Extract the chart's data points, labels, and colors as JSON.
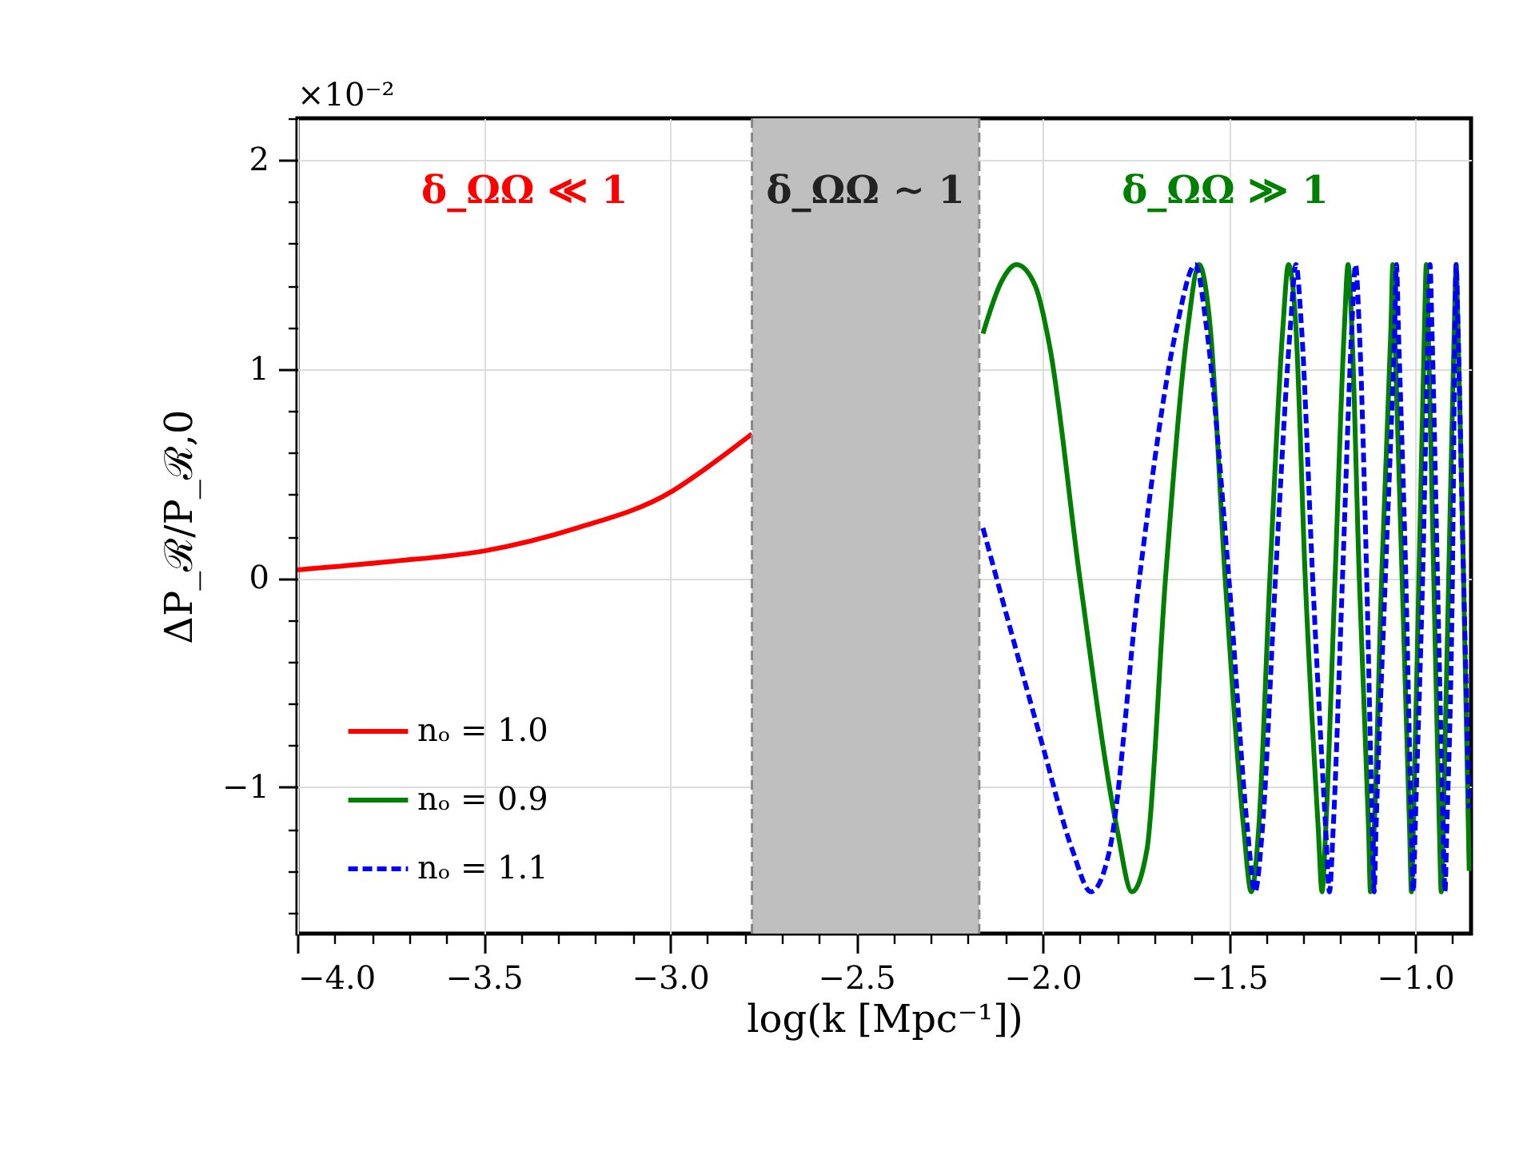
{
  "chart_data": {
    "type": "line",
    "xlabel": "log(k [Mpc⁻¹])",
    "ylabel": "ΔP_ℛ/P_ℛ,0",
    "xlim": [
      -4.0,
      -0.85
    ],
    "ylim": [
      -1.7,
      2.2
    ],
    "xticks": [
      {
        "value": -4.0,
        "label": "−4.0"
      },
      {
        "value": -3.9,
        "label": null
      },
      {
        "value": -3.8,
        "label": null
      },
      {
        "value": -3.7,
        "label": null
      },
      {
        "value": -3.6,
        "label": null
      },
      {
        "value": -3.5,
        "label": "−3.5"
      },
      {
        "value": -3.4,
        "label": null
      },
      {
        "value": -3.3,
        "label": null
      },
      {
        "value": -3.2,
        "label": null
      },
      {
        "value": -3.1,
        "label": null
      },
      {
        "value": -3.0,
        "label": "−3.0"
      },
      {
        "value": -2.9,
        "label": null
      },
      {
        "value": -2.8,
        "label": null
      },
      {
        "value": -2.7,
        "label": null
      },
      {
        "value": -2.6,
        "label": null
      },
      {
        "value": -2.5,
        "label": "−2.5"
      },
      {
        "value": -2.4,
        "label": null
      },
      {
        "value": -2.3,
        "label": null
      },
      {
        "value": -2.2,
        "label": null
      },
      {
        "value": -2.1,
        "label": null
      },
      {
        "value": -2.0,
        "label": "−2.0"
      },
      {
        "value": -1.9,
        "label": null
      },
      {
        "value": -1.8,
        "label": null
      },
      {
        "value": -1.7,
        "label": null
      },
      {
        "value": -1.6,
        "label": null
      },
      {
        "value": -1.5,
        "label": "−1.5"
      },
      {
        "value": -1.4,
        "label": null
      },
      {
        "value": -1.3,
        "label": null
      },
      {
        "value": -1.2,
        "label": null
      },
      {
        "value": -1.1,
        "label": null
      },
      {
        "value": -1.0,
        "label": "−1.0"
      },
      {
        "value": -0.9,
        "label": null
      }
    ],
    "yticks": [
      {
        "value": -1.6,
        "label": null
      },
      {
        "value": -1.4,
        "label": null
      },
      {
        "value": -1.2,
        "label": null
      },
      {
        "value": -1,
        "label": "−1"
      },
      {
        "value": -0.8,
        "label": null
      },
      {
        "value": -0.6,
        "label": null
      },
      {
        "value": -0.4,
        "label": null
      },
      {
        "value": -0.2,
        "label": null
      },
      0,
      {
        "value": 0.2,
        "label": null
      },
      {
        "value": 0.4,
        "label": null
      },
      {
        "value": 0.6,
        "label": null
      },
      {
        "value": 0.8,
        "label": null
      },
      1,
      {
        "value": 1.2,
        "label": null
      },
      {
        "value": 1.4,
        "label": null
      },
      {
        "value": 1.6,
        "label": null
      },
      {
        "value": 1.8,
        "label": null
      },
      2,
      {
        "value": 2.2,
        "label": null
      }
    ],
    "grid": true,
    "legend": "bottom left",
    "bands": [
      {
        "axis": "x",
        "from": -2.78,
        "to": -2.17,
        "label": "δ_ΩΩ ∼ 1",
        "color": "#bfbfbf"
      }
    ],
    "ref_lines": [
      {
        "axis": "x",
        "value": -2.78,
        "color": "#888888",
        "line_style": "dashed"
      },
      {
        "axis": "x",
        "value": -2.17,
        "color": "#888888",
        "line_style": "dashed"
      }
    ],
    "annotations": [
      "×10⁻²",
      "δ_ΩΩ ≪ 1",
      "δ_ΩΩ ≫ 1"
    ],
    "series": [
      {
        "name": "nₒ = 1.0",
        "color": "#ff0000",
        "line_style": "solid",
        "x": [
          -4.0,
          -3.75,
          -3.5,
          -3.25,
          -3.0,
          -2.9,
          -2.78
        ],
        "values": [
          0.04,
          0.08,
          0.13,
          0.24,
          0.41,
          0.53,
          0.69
        ]
      },
      {
        "name": "nₒ = 0.9",
        "color": "#008000",
        "line_style": "solid",
        "x": [
          -2.16,
          -2.11,
          -2.07,
          -2.02,
          -1.98,
          -1.9,
          -1.8,
          -1.76,
          -1.72,
          -1.67,
          -1.61,
          -1.58,
          -1.55,
          -1.51,
          -1.46,
          -1.44,
          -1.42,
          -1.39,
          -1.355,
          -1.34,
          -1.32,
          -1.295,
          -1.26,
          -1.25,
          -1.24,
          -1.215,
          -1.19,
          -1.18,
          -1.17,
          -1.15,
          -1.125,
          -1.12,
          -1.11,
          -1.09,
          -1.065,
          -1.06,
          -1.055,
          -1.035,
          -1.015,
          -1.01,
          -1.005,
          -0.99,
          -0.975,
          -0.97,
          -0.965,
          -0.95,
          -0.935,
          -0.93,
          -0.925,
          -0.91,
          -0.895,
          -0.89,
          -0.885,
          -0.87,
          -0.855
        ],
        "values": [
          1.17,
          1.42,
          1.5,
          1.4,
          1.1,
          0,
          -1.2,
          -1.5,
          -1.3,
          0,
          1.2,
          1.5,
          1.2,
          0,
          -1.2,
          -1.5,
          -1.2,
          0,
          1.2,
          1.5,
          1.2,
          0,
          -1.2,
          -1.5,
          -1.2,
          0,
          1.2,
          1.5,
          1.2,
          0,
          -1.2,
          -1.5,
          -1.2,
          0,
          1.2,
          1.5,
          1.2,
          0,
          -1.2,
          -1.5,
          -1.2,
          0,
          1.2,
          1.5,
          1.2,
          0,
          -1.2,
          -1.5,
          -1.2,
          0,
          1.2,
          1.5,
          1.2,
          0,
          -1.4
        ]
      },
      {
        "name": "nₒ = 1.1",
        "color": "#0000ff",
        "line_style": "dashed",
        "x": [
          -2.16,
          -2.0,
          -1.92,
          -1.87,
          -1.82,
          -1.74,
          -1.64,
          -1.59,
          -1.56,
          -1.5,
          -1.45,
          -1.43,
          -1.41,
          -1.375,
          -1.335,
          -1.32,
          -1.305,
          -1.275,
          -1.24,
          -1.23,
          -1.22,
          -1.195,
          -1.17,
          -1.16,
          -1.15,
          -1.13,
          -1.115,
          -1.11,
          -1.105,
          -1.08,
          -1.055,
          -1.05,
          -1.045,
          -1.025,
          -1.01,
          -1.005,
          -1.0,
          -0.98,
          -0.965,
          -0.96,
          -0.955,
          -0.94,
          -0.925,
          -0.92,
          -0.915,
          -0.9,
          -0.893,
          -0.89,
          -0.885,
          -0.87,
          -0.855
        ],
        "values": [
          0.24,
          -0.8,
          -1.3,
          -1.5,
          -1.3,
          0,
          1.2,
          1.5,
          1.2,
          0,
          -1.2,
          -1.5,
          -1.2,
          0,
          1.2,
          1.5,
          1.2,
          0,
          -1.2,
          -1.5,
          -1.2,
          0,
          1.2,
          1.5,
          1.2,
          0,
          -1.2,
          -1.5,
          -1.2,
          0,
          1.2,
          1.5,
          1.2,
          0,
          -1.2,
          -1.5,
          -1.2,
          0,
          1.2,
          1.5,
          1.2,
          0,
          -1.2,
          -1.5,
          -1.2,
          0,
          1.2,
          1.5,
          1.2,
          0,
          -1.1
        ]
      }
    ]
  }
}
